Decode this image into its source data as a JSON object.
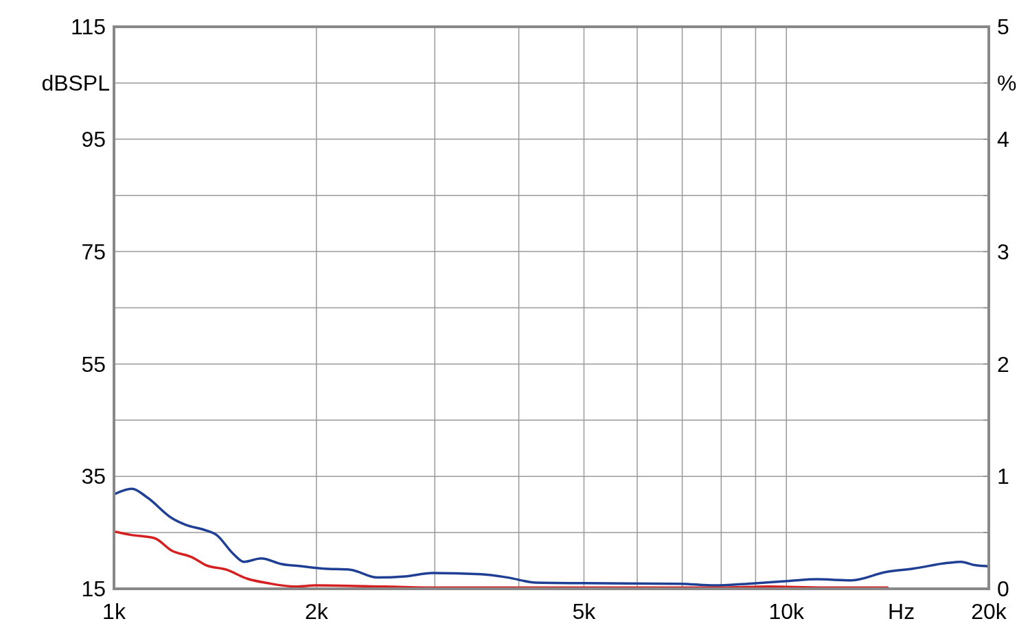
{
  "chart_data": {
    "type": "line",
    "xlabel": "Hz",
    "ylabel": "dBSPL",
    "y2label": "%",
    "log": "x",
    "grid": true,
    "xlim": [
      1000,
      20000
    ],
    "xticks": [
      {
        "value": 1000,
        "label": "1k"
      },
      {
        "value": 2000,
        "label": "2k"
      },
      {
        "value": 3000,
        "label": null
      },
      {
        "value": 4000,
        "label": null
      },
      {
        "value": 5000,
        "label": "5k"
      },
      {
        "value": 6000,
        "label": null
      },
      {
        "value": 7000,
        "label": null
      },
      {
        "value": 8000,
        "label": null
      },
      {
        "value": 9000,
        "label": null
      },
      {
        "value": 10000,
        "label": "10k"
      },
      {
        "value": 20000,
        "label": "20k"
      }
    ],
    "ylim": [
      15,
      115
    ],
    "yticks": [
      15,
      {
        "value": 25,
        "label": null
      },
      35,
      {
        "value": 45,
        "label": null
      },
      55,
      {
        "value": 65,
        "label": null
      },
      75,
      {
        "value": 85,
        "label": null
      },
      95,
      {
        "value": 105,
        "label": null
      },
      115
    ],
    "y2lim": [
      0,
      5
    ],
    "y2ticks": [
      0,
      {
        "value": 0.5,
        "label": null
      },
      1,
      {
        "value": 1.5,
        "label": null
      },
      2,
      {
        "value": 2.5,
        "label": null
      },
      3,
      {
        "value": 3.5,
        "label": null
      },
      4,
      {
        "value": 4.5,
        "label": null
      },
      5
    ],
    "series": [
      {
        "color": "#1f3f94",
        "axis": "y2",
        "x": [
          1000,
          1063,
          1122,
          1218,
          1277,
          1370,
          1420,
          1505,
          1560,
          1655,
          1775,
          1905,
          2043,
          2245,
          2465,
          2708,
          2975,
          3511,
          3855,
          4236,
          4998,
          6945,
          7818,
          8756,
          10116,
          11115,
          12496,
          14070,
          15460,
          17355,
          18190,
          19070,
          20000
        ],
        "values": [
          0.84,
          0.89,
          0.81,
          0.63,
          0.57,
          0.52,
          0.48,
          0.31,
          0.24,
          0.27,
          0.22,
          0.2,
          0.18,
          0.17,
          0.1,
          0.11,
          0.14,
          0.13,
          0.1,
          0.055,
          0.05,
          0.045,
          0.03,
          0.045,
          0.07,
          0.085,
          0.075,
          0.15,
          0.18,
          0.23,
          0.24,
          0.21,
          0.2
        ]
      },
      {
        "color": "#d42020",
        "axis": "y2",
        "x": [
          1000,
          1058,
          1149,
          1218,
          1307,
          1370,
          1470,
          1578,
          1694,
          1860,
          1996,
          2525,
          3049,
          7992,
          9413,
          11378,
          14140
        ],
        "values": [
          0.51,
          0.48,
          0.45,
          0.34,
          0.28,
          0.21,
          0.17,
          0.09,
          0.05,
          0.02,
          0.03,
          0.02,
          0.01,
          0.01,
          0.02,
          0.01,
          0.01
        ]
      }
    ]
  }
}
